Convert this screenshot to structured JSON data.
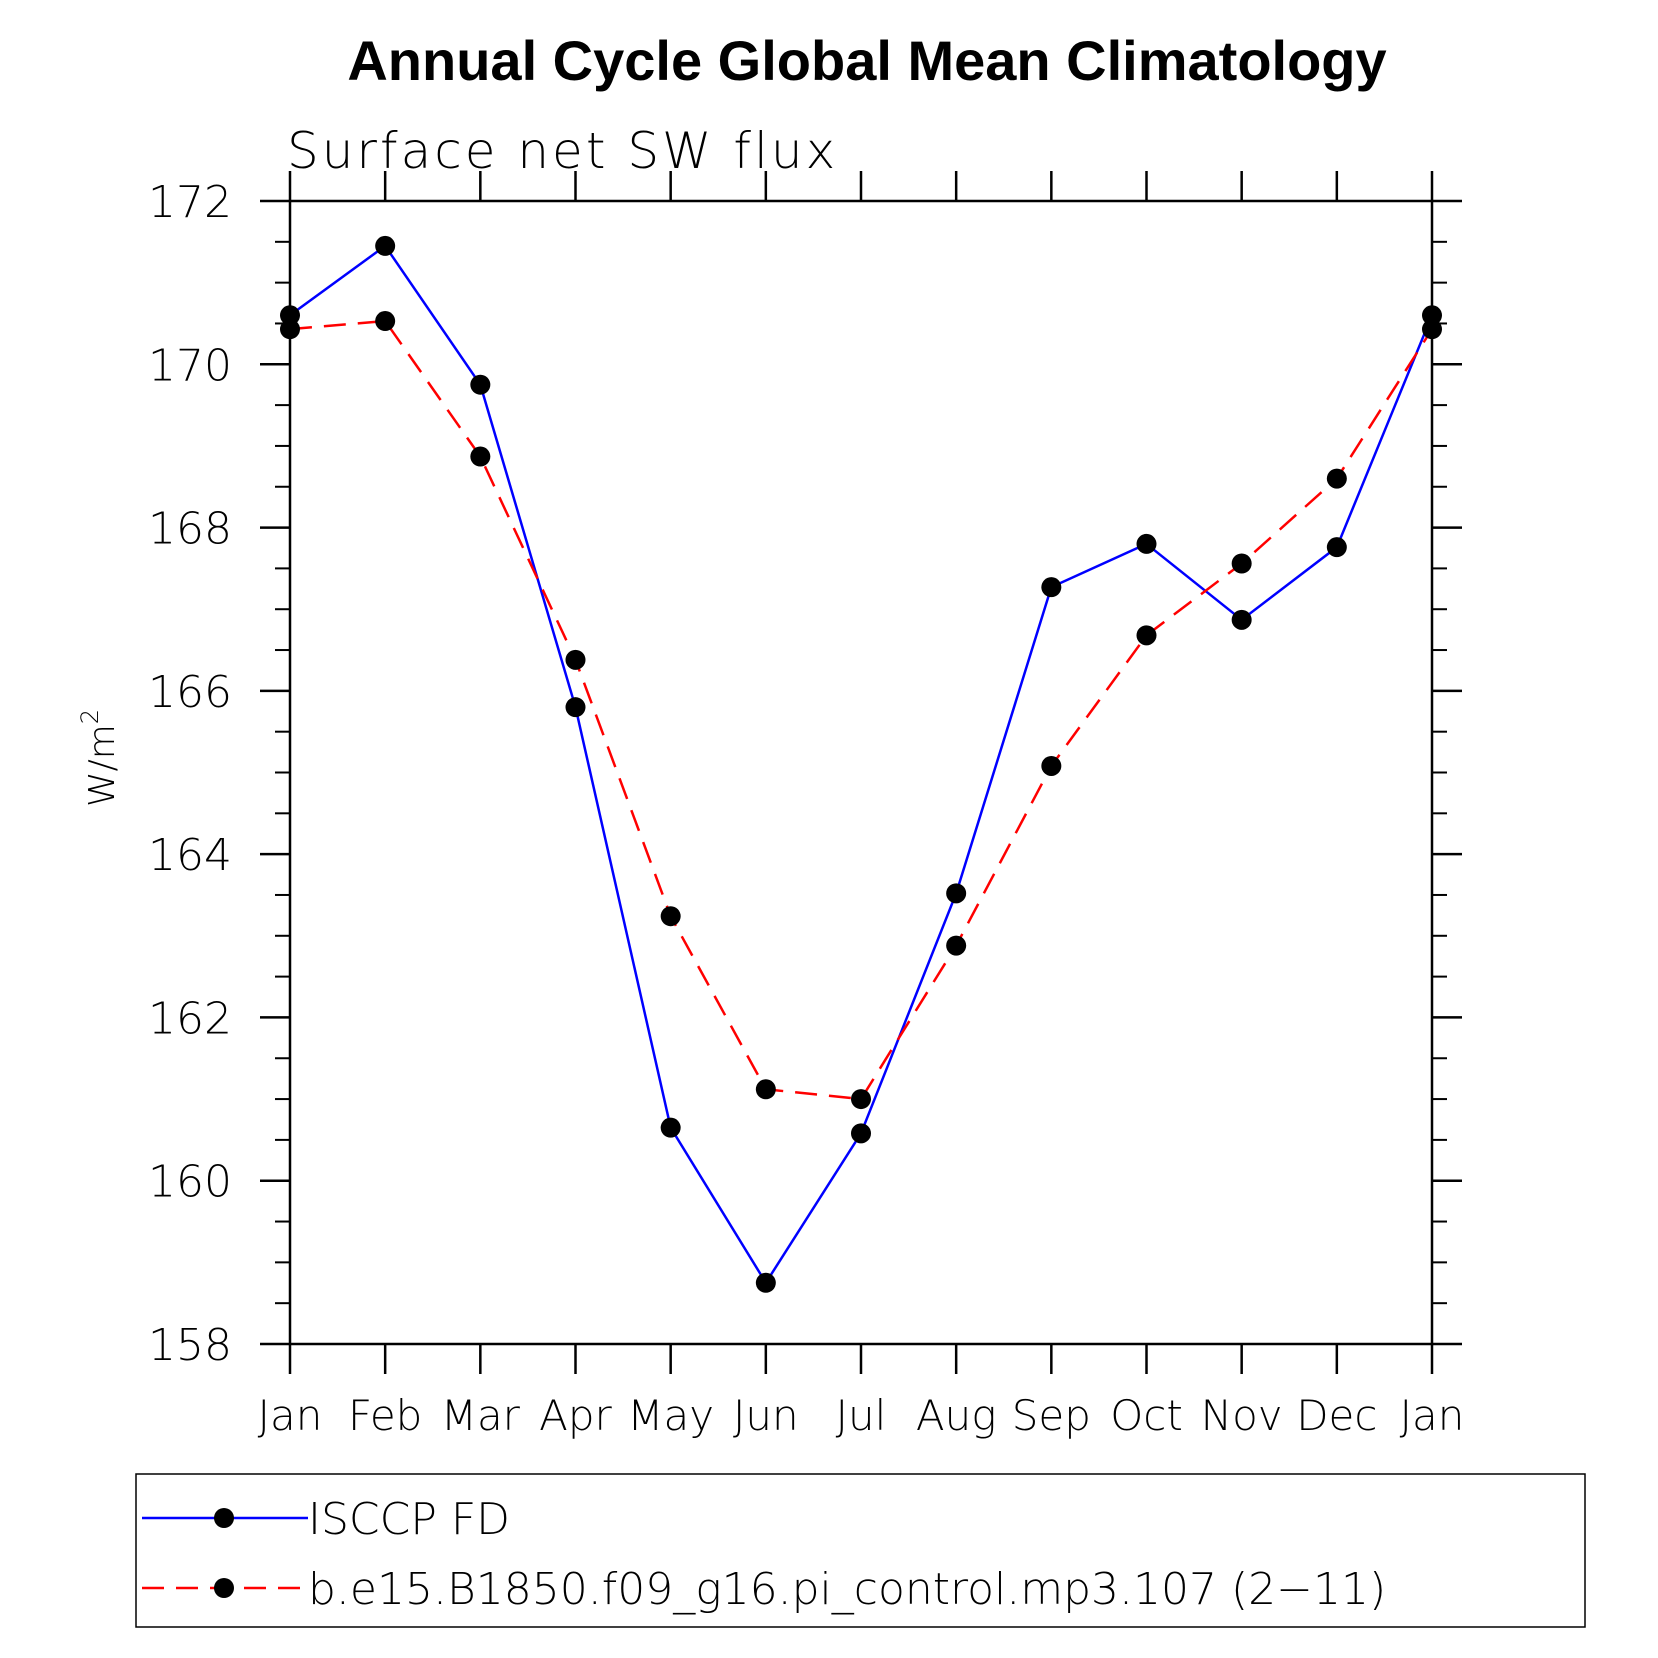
{
  "chart_data": {
    "type": "line",
    "title": "Annual Cycle Global Mean Climatology",
    "subtitle": "Surface net SW flux",
    "ylabel": "W/m",
    "ylabel_sup": "2",
    "ylim": [
      158,
      172
    ],
    "yticks": [
      158,
      160,
      162,
      164,
      166,
      168,
      170,
      172
    ],
    "categories": [
      "Jan",
      "Feb",
      "Mar",
      "Apr",
      "May",
      "Jun",
      "Jul",
      "Aug",
      "Sep",
      "Oct",
      "Nov",
      "Dec",
      "Jan"
    ],
    "series": [
      {
        "name": "ISCCP FD",
        "color": "#0000ff",
        "dash": "solid",
        "values": [
          170.6,
          171.45,
          169.75,
          165.8,
          160.65,
          158.75,
          160.58,
          163.52,
          167.27,
          167.8,
          166.87,
          167.76,
          170.6
        ]
      },
      {
        "name": "b.e15.B1850.f09_g16.pi_control.mp3.107 (2−11)",
        "color": "#ff0000",
        "dash": "dashed",
        "values": [
          170.43,
          170.53,
          168.87,
          166.38,
          163.24,
          161.12,
          161.0,
          162.88,
          165.08,
          166.68,
          167.56,
          168.6,
          170.43
        ]
      }
    ],
    "legend_position": "bottom"
  }
}
